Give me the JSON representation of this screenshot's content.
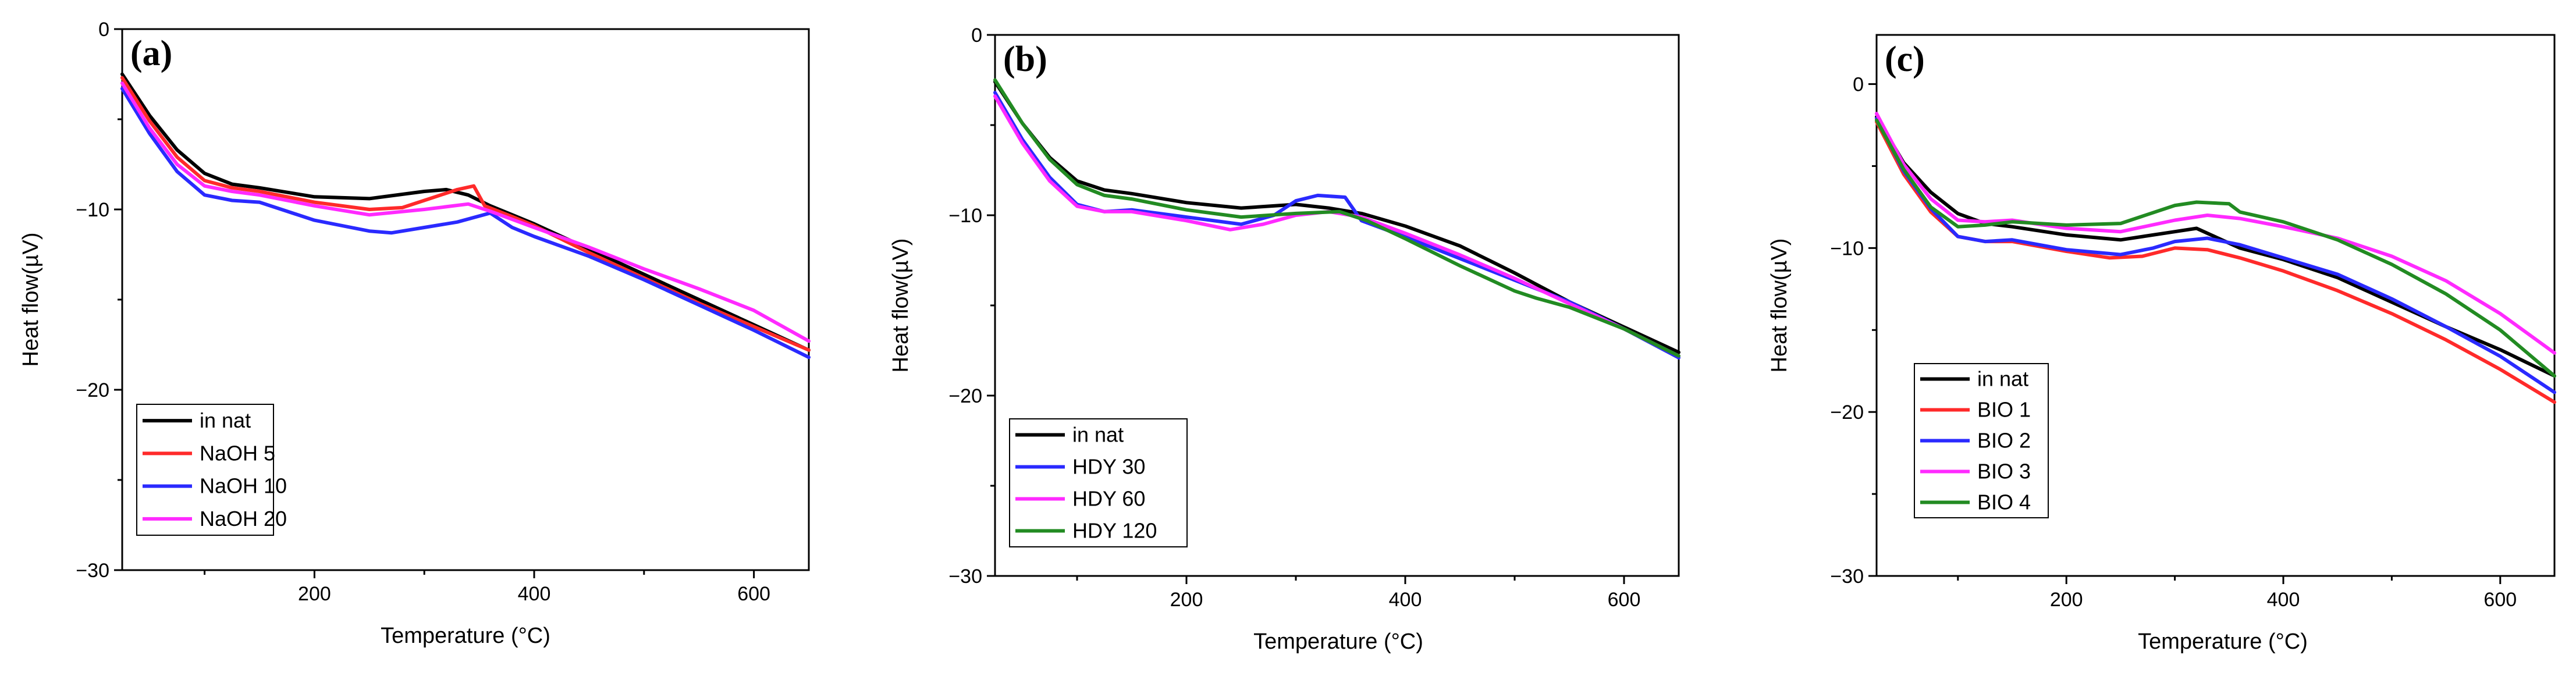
{
  "chart_data": [
    {
      "type": "line",
      "panel_label": "(a)",
      "xlabel": "Temperature (°C)",
      "ylabel": "Heat flow(µV)",
      "xlim": [
        25,
        650
      ],
      "ylim": [
        -30,
        0
      ],
      "xticks": [
        200,
        400,
        600
      ],
      "yticks": [
        0,
        -10,
        -20,
        -30
      ],
      "legend_position": "bottom-left",
      "series": [
        {
          "name": "in nat",
          "color": "#000000",
          "x": [
            25,
            50,
            75,
            100,
            125,
            150,
            200,
            250,
            300,
            320,
            340,
            360,
            400,
            450,
            500,
            550,
            600,
            650
          ],
          "y": [
            -2.5,
            -4.8,
            -6.7,
            -8.0,
            -8.6,
            -8.8,
            -9.3,
            -9.4,
            -9.0,
            -8.9,
            -9.2,
            -9.8,
            -10.8,
            -12.2,
            -13.6,
            -15.0,
            -16.4,
            -17.8
          ]
        },
        {
          "name": "NaOH 5",
          "color": "#ff2a2a",
          "x": [
            25,
            50,
            75,
            100,
            125,
            150,
            200,
            250,
            280,
            300,
            330,
            345,
            355,
            380,
            400,
            450,
            500,
            550,
            600,
            650
          ],
          "y": [
            -2.7,
            -5.1,
            -7.1,
            -8.4,
            -8.8,
            -9.0,
            -9.6,
            -10.0,
            -9.9,
            -9.5,
            -8.9,
            -8.7,
            -9.8,
            -10.4,
            -10.9,
            -12.4,
            -13.8,
            -15.2,
            -16.5,
            -17.8
          ]
        },
        {
          "name": "NaOH 10",
          "color": "#2a2aff",
          "x": [
            25,
            50,
            75,
            100,
            125,
            150,
            200,
            250,
            270,
            300,
            330,
            360,
            380,
            400,
            450,
            500,
            550,
            600,
            650
          ],
          "y": [
            -3.3,
            -5.8,
            -7.9,
            -9.2,
            -9.5,
            -9.6,
            -10.6,
            -11.2,
            -11.3,
            -11.0,
            -10.7,
            -10.2,
            -11.0,
            -11.5,
            -12.6,
            -13.9,
            -15.3,
            -16.7,
            -18.2
          ]
        },
        {
          "name": "NaOH 20",
          "color": "#ff2aff",
          "x": [
            25,
            50,
            75,
            100,
            125,
            150,
            200,
            250,
            300,
            340,
            360,
            400,
            450,
            500,
            550,
            600,
            650
          ],
          "y": [
            -3.0,
            -5.5,
            -7.5,
            -8.7,
            -9.0,
            -9.2,
            -9.8,
            -10.3,
            -10.0,
            -9.7,
            -10.1,
            -11.0,
            -12.1,
            -13.3,
            -14.4,
            -15.6,
            -17.3
          ]
        }
      ]
    },
    {
      "type": "line",
      "panel_label": "(b)",
      "xlabel": "Temperature (°C)",
      "ylabel": "Heat flow(µV)",
      "xlim": [
        25,
        650
      ],
      "ylim": [
        -30,
        0
      ],
      "xticks": [
        200,
        400,
        600
      ],
      "yticks": [
        0,
        -10,
        -20,
        -30
      ],
      "legend_position": "bottom-left",
      "series": [
        {
          "name": "in nat",
          "color": "#000000",
          "x": [
            25,
            50,
            75,
            100,
            125,
            150,
            200,
            250,
            300,
            330,
            360,
            400,
            450,
            480,
            500,
            550,
            600,
            650
          ],
          "y": [
            -2.6,
            -4.9,
            -6.8,
            -8.1,
            -8.6,
            -8.8,
            -9.3,
            -9.6,
            -9.4,
            -9.6,
            -9.9,
            -10.6,
            -11.7,
            -12.6,
            -13.2,
            -14.8,
            -16.2,
            -17.6
          ]
        },
        {
          "name": "HDY 30",
          "color": "#2a2aff",
          "x": [
            25,
            50,
            75,
            100,
            125,
            150,
            200,
            250,
            280,
            300,
            320,
            345,
            360,
            400,
            450,
            500,
            550,
            600,
            650
          ],
          "y": [
            -3.2,
            -5.8,
            -7.9,
            -9.4,
            -9.8,
            -9.7,
            -10.1,
            -10.5,
            -10.0,
            -9.2,
            -8.9,
            -9.0,
            -10.3,
            -11.2,
            -12.4,
            -13.6,
            -14.8,
            -16.3,
            -17.9
          ]
        },
        {
          "name": "HDY 60",
          "color": "#ff2aff",
          "x": [
            25,
            50,
            75,
            100,
            125,
            150,
            200,
            240,
            270,
            300,
            330,
            360,
            400,
            450,
            500,
            550,
            600,
            650
          ],
          "y": [
            -3.4,
            -6.0,
            -8.1,
            -9.5,
            -9.8,
            -9.8,
            -10.3,
            -10.8,
            -10.5,
            -10.0,
            -9.8,
            -10.1,
            -11.0,
            -12.2,
            -13.5,
            -14.9,
            -16.3,
            -17.8
          ]
        },
        {
          "name": "HDY 120",
          "color": "#228b22",
          "x": [
            25,
            50,
            75,
            100,
            125,
            150,
            200,
            250,
            300,
            340,
            365,
            400,
            450,
            500,
            520,
            550,
            600,
            650
          ],
          "y": [
            -2.5,
            -4.9,
            -6.9,
            -8.3,
            -8.9,
            -9.1,
            -9.7,
            -10.1,
            -9.9,
            -9.8,
            -10.3,
            -11.3,
            -12.8,
            -14.2,
            -14.6,
            -15.1,
            -16.3,
            -17.8
          ]
        }
      ]
    },
    {
      "type": "line",
      "panel_label": "(c)",
      "xlabel": "Temperature (°C)",
      "ylabel": "Heat flow(µV)",
      "xlim": [
        25,
        650
      ],
      "ylim": [
        -30,
        3
      ],
      "xticks": [
        200,
        400,
        600
      ],
      "yticks": [
        0,
        -10,
        -20,
        -30
      ],
      "legend_position": "bottom-left",
      "series": [
        {
          "name": "in nat",
          "color": "#000000",
          "x": [
            25,
            50,
            75,
            100,
            125,
            150,
            200,
            250,
            300,
            320,
            340,
            360,
            400,
            450,
            500,
            550,
            600,
            650
          ],
          "y": [
            -2.0,
            -4.8,
            -6.6,
            -7.9,
            -8.5,
            -8.7,
            -9.2,
            -9.5,
            -9.0,
            -8.8,
            -9.4,
            -10.0,
            -10.7,
            -11.8,
            -13.3,
            -14.8,
            -16.2,
            -17.8
          ]
        },
        {
          "name": "BIO 1",
          "color": "#ff2a2a",
          "x": [
            25,
            50,
            75,
            100,
            125,
            150,
            200,
            240,
            270,
            300,
            330,
            360,
            400,
            450,
            500,
            550,
            600,
            650
          ],
          "y": [
            -2.3,
            -5.5,
            -7.8,
            -9.3,
            -9.6,
            -9.6,
            -10.2,
            -10.6,
            -10.5,
            -10.0,
            -10.1,
            -10.6,
            -11.4,
            -12.6,
            -14.0,
            -15.6,
            -17.4,
            -19.4
          ]
        },
        {
          "name": "BIO 2",
          "color": "#2a2aff",
          "x": [
            25,
            50,
            75,
            100,
            125,
            150,
            200,
            250,
            280,
            300,
            330,
            360,
            400,
            450,
            500,
            550,
            600,
            650
          ],
          "y": [
            -2.1,
            -5.3,
            -7.6,
            -9.3,
            -9.6,
            -9.5,
            -10.1,
            -10.4,
            -10.0,
            -9.6,
            -9.4,
            -9.8,
            -10.6,
            -11.6,
            -13.1,
            -14.8,
            -16.6,
            -18.8
          ]
        },
        {
          "name": "BIO 3",
          "color": "#ff2aff",
          "x": [
            25,
            50,
            75,
            100,
            125,
            150,
            200,
            250,
            300,
            330,
            360,
            400,
            450,
            500,
            550,
            600,
            650
          ],
          "y": [
            -1.8,
            -4.9,
            -7.0,
            -8.3,
            -8.4,
            -8.3,
            -8.8,
            -9.0,
            -8.3,
            -8.0,
            -8.2,
            -8.7,
            -9.4,
            -10.5,
            -12.0,
            -14.0,
            -16.4
          ]
        },
        {
          "name": "BIO 4",
          "color": "#228b22",
          "x": [
            25,
            50,
            75,
            100,
            125,
            150,
            200,
            250,
            300,
            320,
            350,
            360,
            400,
            450,
            500,
            550,
            600,
            650
          ],
          "y": [
            -2.2,
            -5.2,
            -7.5,
            -8.7,
            -8.6,
            -8.4,
            -8.6,
            -8.5,
            -7.4,
            -7.2,
            -7.3,
            -7.8,
            -8.4,
            -9.5,
            -11.0,
            -12.8,
            -15.0,
            -17.8
          ]
        }
      ]
    }
  ]
}
